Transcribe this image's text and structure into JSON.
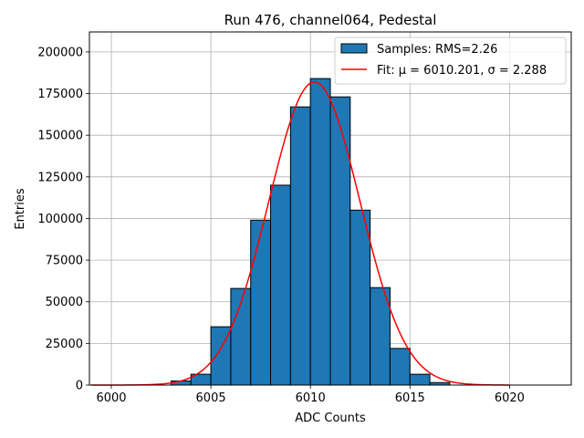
{
  "chart_data": {
    "type": "bar",
    "title": "Run 476, channel064, Pedestal",
    "xlabel": "ADC Counts",
    "ylabel": "Entries",
    "xlim": [
      5998.9,
      6023.1
    ],
    "ylim": [
      0,
      212000
    ],
    "grid": true,
    "legend_position": "top-right",
    "x_ticks": [
      6000,
      6005,
      6010,
      6015,
      6020
    ],
    "x_tick_labels": [
      "6000",
      "6005",
      "6010",
      "6015",
      "6020"
    ],
    "y_ticks": [
      0,
      25000,
      50000,
      75000,
      100000,
      125000,
      150000,
      175000,
      200000
    ],
    "y_tick_labels": [
      "0",
      "25000",
      "50000",
      "75000",
      "100000",
      "125000",
      "150000",
      "175000",
      "200000"
    ],
    "histogram": {
      "name": "Samples: RMS=2.26",
      "color": "#1f77b4",
      "edge_color": "#000000",
      "bin_edges": [
        6003,
        6004,
        6005,
        6006,
        6007,
        6008,
        6009,
        6010,
        6011,
        6012,
        6013,
        6014,
        6015,
        6016,
        6017
      ],
      "values": [
        2500,
        6500,
        35000,
        58000,
        99000,
        120000,
        167000,
        184000,
        173000,
        105000,
        58500,
        22000,
        6500,
        1500
      ]
    },
    "fit": {
      "name": "Fit: μ = 6010.201, σ = 2.288",
      "color": "#ff0000",
      "mu": 6010.201,
      "sigma": 2.288,
      "amplitude": 182000,
      "x_range": [
        5999,
        6020
      ]
    }
  }
}
